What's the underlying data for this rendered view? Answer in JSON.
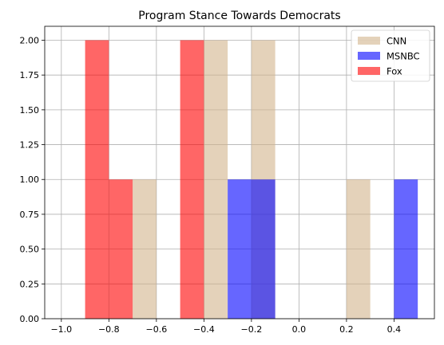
{
  "chart_data": {
    "type": "bar",
    "title": "Program Stance Towards Democrats",
    "xlabel": "",
    "ylabel": "",
    "xlim": [
      -1.07,
      0.57
    ],
    "ylim": [
      0,
      2.1
    ],
    "grid": true,
    "legend_position": "top-right",
    "x_ticks": [
      "−1.0",
      "−0.8",
      "−0.6",
      "−0.4",
      "−0.2",
      "0.0",
      "0.2",
      "0.4"
    ],
    "y_ticks": [
      "0.00",
      "0.25",
      "0.50",
      "0.75",
      "1.00",
      "1.25",
      "1.50",
      "1.75",
      "2.00"
    ],
    "series": [
      {
        "name": "CNN",
        "color": "#d2b48c",
        "opacity": 0.6,
        "bins": [
          {
            "start": -0.7,
            "end": -0.6,
            "count": 1
          },
          {
            "start": -0.4,
            "end": -0.3,
            "count": 2
          },
          {
            "start": -0.2,
            "end": -0.1,
            "count": 2
          },
          {
            "start": 0.2,
            "end": 0.3,
            "count": 1
          }
        ]
      },
      {
        "name": "MSNBC",
        "color": "#0000ff",
        "opacity": 0.6,
        "bins": [
          {
            "start": -0.3,
            "end": -0.2,
            "count": 1
          },
          {
            "start": -0.2,
            "end": -0.1,
            "count": 1
          },
          {
            "start": 0.4,
            "end": 0.5,
            "count": 1
          }
        ]
      },
      {
        "name": "Fox",
        "color": "#ff0000",
        "opacity": 0.6,
        "bins": [
          {
            "start": -0.9,
            "end": -0.8,
            "count": 2
          },
          {
            "start": -0.8,
            "end": -0.7,
            "count": 1
          },
          {
            "start": -0.5,
            "end": -0.4,
            "count": 2
          }
        ]
      }
    ]
  }
}
